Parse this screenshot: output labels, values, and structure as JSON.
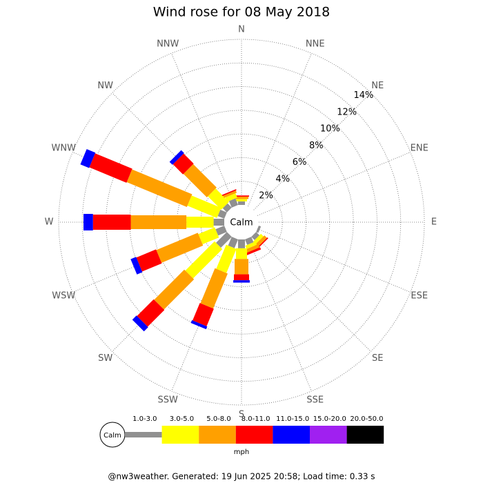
{
  "chart_data": {
    "type": "windrose",
    "title": "Wind rose for 08 May 2018",
    "categories": [
      "N",
      "NNE",
      "NE",
      "ENE",
      "E",
      "ESE",
      "SE",
      "SSE",
      "S",
      "SSW",
      "SW",
      "WSW",
      "W",
      "WNW",
      "NW",
      "NNW"
    ],
    "series": [
      {
        "name": "1.0-3.0",
        "color": "#909090",
        "values": [
          0.3,
          0,
          0,
          0,
          0,
          0.2,
          0.4,
          0.5,
          0.75,
          0.8,
          1.3,
          0.8,
          0.9,
          0.6,
          0.5,
          0.6
        ]
      },
      {
        "name": "3.0-5.0",
        "color": "#ffff00",
        "values": [
          0.2,
          0,
          0,
          0,
          0,
          0,
          0.3,
          0.3,
          0.9,
          2.2,
          3.5,
          1.5,
          2.3,
          2.7,
          1.6,
          0.4
        ]
      },
      {
        "name": "5.0-8.0",
        "color": "#ffa000",
        "values": [
          0.2,
          0,
          0,
          0,
          0,
          0,
          0.3,
          0.3,
          1.3,
          3.2,
          3.6,
          3.8,
          4.7,
          5.5,
          2.8,
          0.2
        ]
      },
      {
        "name": "8.0-11.0",
        "color": "#ff0000",
        "values": [
          0.1,
          0,
          0,
          0,
          0,
          0,
          0.1,
          0.2,
          0.5,
          1.6,
          2.0,
          1.8,
          3.2,
          3.4,
          1.2,
          0.1
        ]
      },
      {
        "name": "11.0-15.0",
        "color": "#0000ff",
        "values": [
          0,
          0,
          0,
          0,
          0,
          0,
          0,
          0,
          0.2,
          0.25,
          0.5,
          0.5,
          0.8,
          0.8,
          0.35,
          0
        ]
      },
      {
        "name": "15.0-20.0",
        "color": "#a020f0",
        "values": [
          0,
          0,
          0,
          0,
          0,
          0,
          0,
          0,
          0,
          0,
          0,
          0,
          0,
          0,
          0,
          0
        ]
      },
      {
        "name": "20.0-50.0",
        "color": "#000000",
        "values": [
          0,
          0,
          0,
          0,
          0,
          0,
          0,
          0,
          0,
          0,
          0,
          0,
          0,
          0,
          0,
          0
        ]
      }
    ],
    "rlim": [
      0,
      14
    ],
    "rticks": [
      {
        "value": 2,
        "label": "2%"
      },
      {
        "value": 4,
        "label": "4%"
      },
      {
        "value": 6,
        "label": "6%"
      },
      {
        "value": 8,
        "label": "8%"
      },
      {
        "value": 10,
        "label": "10%"
      },
      {
        "value": 12,
        "label": "12%"
      },
      {
        "value": 14,
        "label": "14%"
      }
    ],
    "grid": true,
    "calm_label": "Calm",
    "unit_label": "mph",
    "footer": "@nw3weather. Generated: 19 Jun 2025 20:58; Load time: 0.33 s"
  }
}
